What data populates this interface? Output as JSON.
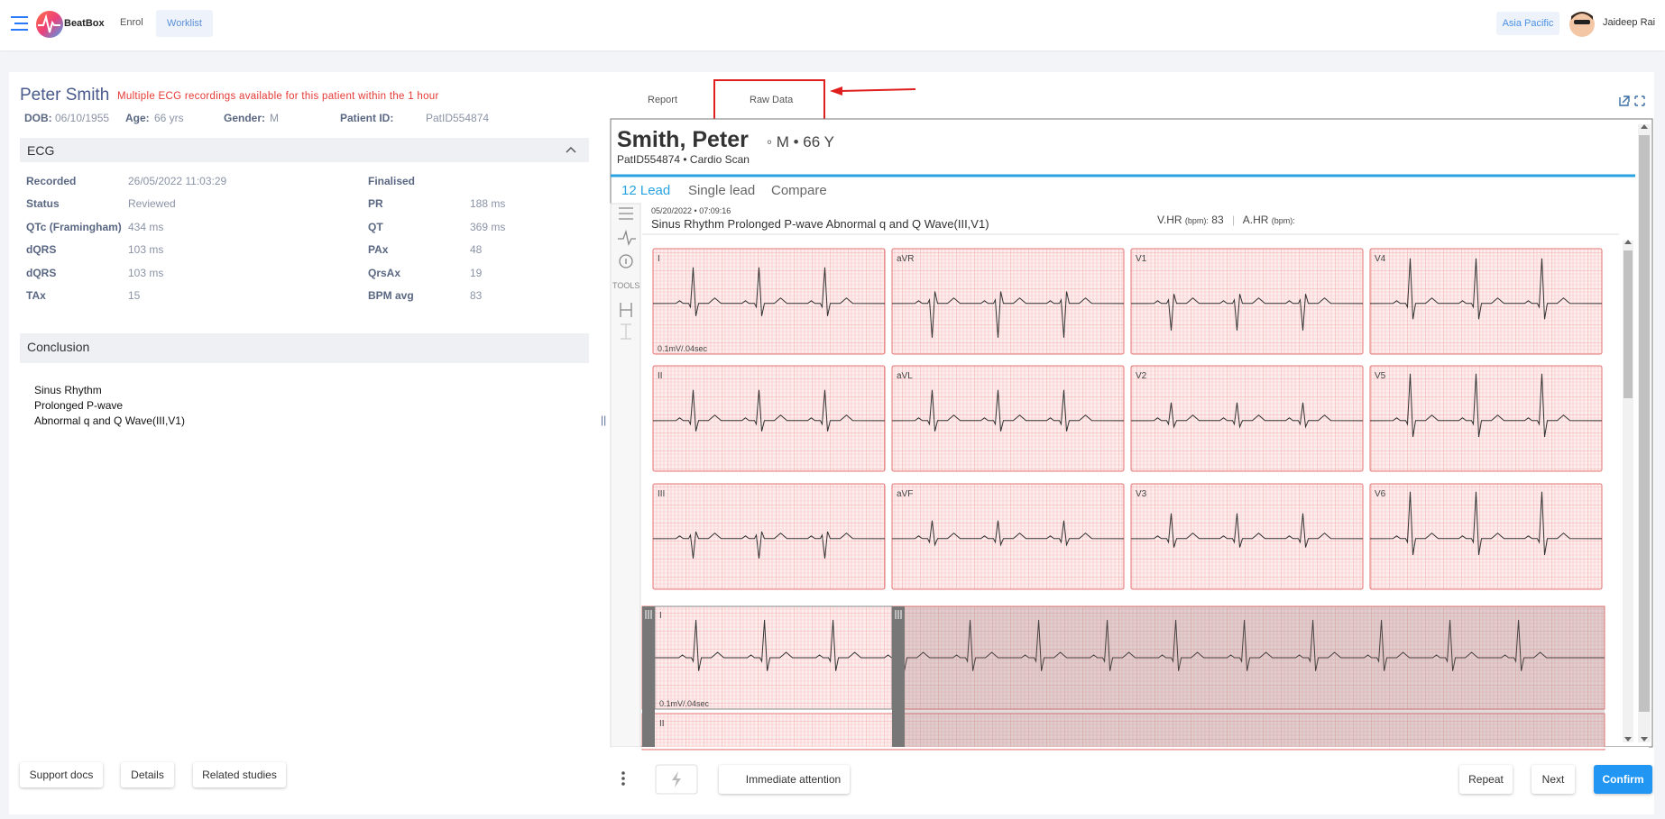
{
  "nav": {
    "brand": "BeatBox",
    "links": [
      "Enrol",
      "Worklist"
    ],
    "region": "Asia Pacific",
    "user": "Jaideep Rai"
  },
  "patient": {
    "name": "Peter Smith",
    "warning": "Multiple ECG recordings available for this patient within the 1 hour",
    "fields": [
      {
        "label": "DOB:",
        "value": "06/10/1955"
      },
      {
        "label": "Age:",
        "value": "66 yrs"
      },
      {
        "label": "Gender:",
        "value": "M"
      },
      {
        "label": "Patient ID:",
        "value": "PatID554874"
      }
    ]
  },
  "ecg": {
    "title": "ECG",
    "left": [
      {
        "label": "Recorded",
        "value": "26/05/2022 11:03:29"
      },
      {
        "label": "Status",
        "value": "Reviewed"
      },
      {
        "label": "QTc (Framingham)",
        "value": "434 ms"
      },
      {
        "label": "dQRS",
        "value": "103 ms"
      },
      {
        "label": "dQRS",
        "value": "103 ms"
      },
      {
        "label": "TAx",
        "value": "15"
      }
    ],
    "right": [
      {
        "label": "Finalised"
      },
      {
        "label": "PR",
        "value": "188 ms"
      },
      {
        "label": "QT",
        "value": "369 ms"
      },
      {
        "label": "PAx",
        "value": "48"
      },
      {
        "label": "QrsAx",
        "value": "19"
      },
      {
        "label": "BPM avg",
        "value": "83"
      }
    ]
  },
  "conclusion": {
    "title": "Conclusion",
    "lines": [
      "Sinus Rhythm",
      "Prolonged P-wave",
      "Abnormal q and Q Wave(III,V1)"
    ]
  },
  "buttons": [
    "Support docs",
    "Details",
    "Related studies"
  ],
  "tabs": [
    "Report",
    "Raw Data"
  ],
  "viewer": {
    "name": "Smith, Peter",
    "meta": "◦ M • 66 Y",
    "sub": "PatID554874 • Cardio Scan",
    "tabs": [
      "12 Lead",
      "Single lead",
      "Compare"
    ],
    "tools": "TOOLS",
    "datetime": "05/20/2022 • 07:09:16",
    "interpretation": "Sinus Rhythm Prolonged P-wave Abnormal q and Q Wave(III,V1)",
    "vhr_label": "V.HR",
    "vhr_unit": "(bpm):",
    "vhr": 83,
    "ahr_label": "A.HR",
    "ahr_unit": "(bpm):",
    "leads": [
      "I",
      "aVR",
      "V1",
      "V4",
      "II",
      "aVL",
      "V2",
      "V5",
      "III",
      "aVF",
      "V3",
      "V6"
    ],
    "scale": "0.1mV/.04sec",
    "rhythm_leads": [
      "I",
      "II"
    ]
  },
  "footer": {
    "attention": "Immediate attention",
    "actions": [
      "Repeat",
      "Next",
      "Confirm"
    ]
  }
}
